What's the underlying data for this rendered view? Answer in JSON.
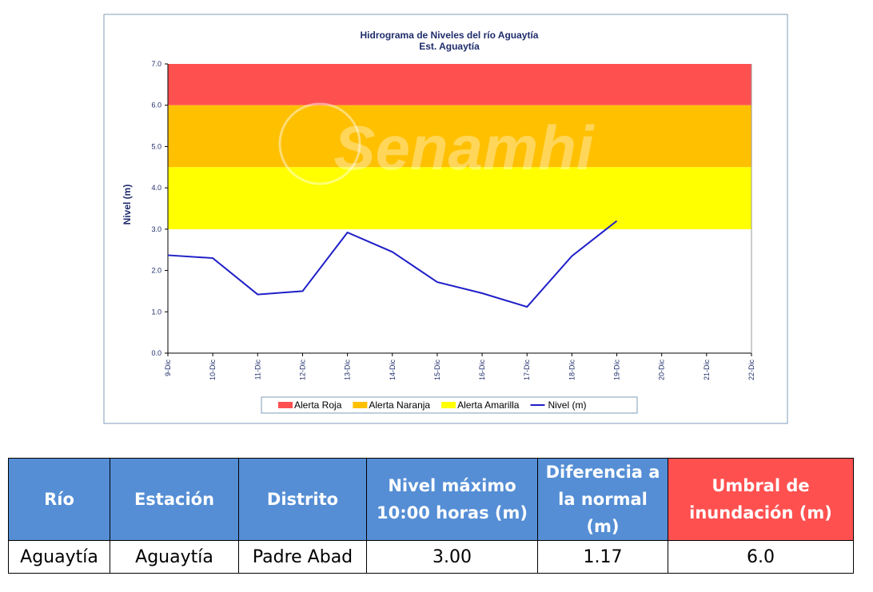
{
  "chart_data": {
    "type": "line",
    "title": "Hidrograma de Niveles del río Aguaytía",
    "subtitle": "Est. Aguaytía",
    "watermark": "Senamhi",
    "y_label": "Nivel (m)",
    "categories": [
      "9-Dic",
      "10-Dic",
      "11-Dic",
      "12-Dic",
      "13-Dic",
      "14-Dic",
      "15-Dic",
      "16-Dic",
      "17-Dic",
      "18-Dic",
      "19-Dic",
      "20-Dic",
      "21-Dic",
      "22-Dic"
    ],
    "series": [
      {
        "name": "Nivel (m)",
        "color": "#1f1fc8",
        "values": [
          2.37,
          2.3,
          1.42,
          1.5,
          2.92,
          2.45,
          1.72,
          1.45,
          1.12,
          2.35,
          3.2,
          null,
          null,
          null
        ]
      }
    ],
    "bands": [
      {
        "name": "Alerta Roja",
        "color": "#ff5050",
        "from": 6,
        "to": 7
      },
      {
        "name": "Alerta Naranja",
        "color": "#ffc000",
        "from": 4.5,
        "to": 6
      },
      {
        "name": "Alerta Amarilla",
        "color": "#ffff00",
        "from": 3,
        "to": 4.5
      }
    ],
    "ylim": [
      0,
      7
    ],
    "yticks": [
      {
        "value": 0,
        "label": "0.0"
      },
      {
        "value": 1,
        "label": "1.0"
      },
      {
        "value": 2,
        "label": "2.0"
      },
      {
        "value": 3,
        "label": "3.0"
      },
      {
        "value": 4,
        "label": "4.0"
      },
      {
        "value": 5,
        "label": "5.0"
      },
      {
        "value": 6,
        "label": "6.0"
      },
      {
        "value": 7,
        "label": "7.0"
      }
    ],
    "legend": "bottom"
  },
  "table": {
    "header": [
      "Río",
      "Estación",
      "Distrito",
      "Nivel máximo 10:00 horas (m)",
      "Diferencia a la normal (m)",
      "Umbral de inundación (m)"
    ],
    "rows": [
      [
        "Aguaytía",
        "Aguaytía",
        "Padre Abad",
        "3.00",
        "1.17",
        "6.0"
      ]
    ]
  }
}
